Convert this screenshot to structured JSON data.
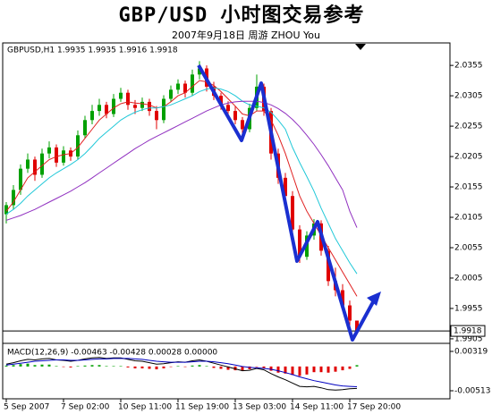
{
  "chart_data": {
    "type": "candlestick",
    "title": "GBP/USD 小时图交易参考",
    "subtitle": "2007年9月18日    周游 ZHOU You",
    "header": "GBPUSD,H1  1.9935 1.9935 1.9916 1.9918",
    "up_color": "#00a000",
    "down_color": "#e00000",
    "open": [
      2.011,
      2.0125,
      2.015,
      2.0185,
      2.02,
      2.0175,
      2.021,
      2.022,
      2.0195,
      2.0215,
      2.0205,
      2.024,
      2.0265,
      2.028,
      2.029,
      2.0275,
      2.03,
      2.031,
      2.029,
      2.0285,
      2.0295,
      2.028,
      2.0265,
      2.03,
      2.0315,
      2.0325,
      2.031,
      2.034,
      2.035,
      2.032,
      2.0305,
      2.029,
      2.028,
      2.0265,
      2.025,
      2.0285,
      2.032,
      2.028,
      2.021,
      2.017,
      2.014,
      2.0085,
      2.004,
      2.0075,
      2.0095,
      2.005,
      2.0,
      1.9985,
      1.996,
      1.9935
    ],
    "high": [
      2.013,
      2.0158,
      2.0192,
      2.021,
      2.0205,
      2.0218,
      2.023,
      2.0225,
      2.0222,
      2.022,
      2.0248,
      2.0272,
      2.029,
      2.03,
      2.0295,
      2.0308,
      2.0318,
      2.0315,
      2.0298,
      2.0302,
      2.03,
      2.0288,
      2.0306,
      2.0322,
      2.0332,
      2.033,
      2.0348,
      2.0362,
      2.0355,
      2.0328,
      2.031,
      2.0296,
      2.0288,
      2.027,
      2.0292,
      2.034,
      2.0325,
      2.0285,
      2.0218,
      2.0178,
      2.0148,
      2.0092,
      2.0082,
      2.0102,
      2.01,
      2.0058,
      2.0022,
      1.9995,
      1.9968,
      1.9935
    ],
    "low": [
      2.0095,
      2.0118,
      2.0142,
      2.0178,
      2.0165,
      2.017,
      2.0202,
      2.0188,
      2.019,
      2.0198,
      2.02,
      2.0235,
      2.0258,
      2.0272,
      2.0268,
      2.027,
      2.0295,
      2.0282,
      2.0275,
      2.028,
      2.0272,
      2.025,
      2.026,
      2.0295,
      2.0308,
      2.0302,
      2.0305,
      2.0332,
      2.0312,
      2.0298,
      2.0282,
      2.027,
      2.0258,
      2.024,
      2.0245,
      2.028,
      2.0272,
      2.02,
      2.016,
      2.013,
      2.0075,
      2.003,
      2.0035,
      2.0068,
      2.0042,
      1.9992,
      1.9975,
      1.9952,
      1.9925,
      1.9916
    ],
    "close": [
      2.0125,
      2.015,
      2.0185,
      2.02,
      2.0175,
      2.021,
      2.022,
      2.0195,
      2.0215,
      2.0205,
      2.024,
      2.0265,
      2.028,
      2.029,
      2.0275,
      2.03,
      2.031,
      2.029,
      2.0285,
      2.0295,
      2.028,
      2.0265,
      2.03,
      2.0315,
      2.0325,
      2.031,
      2.034,
      2.035,
      2.032,
      2.0305,
      2.029,
      2.028,
      2.0265,
      2.025,
      2.0285,
      2.032,
      2.028,
      2.021,
      2.017,
      2.014,
      2.0085,
      2.004,
      2.0075,
      2.0095,
      2.005,
      2.0,
      1.9985,
      1.996,
      1.9935,
      1.9918
    ],
    "ma_lines": [
      {
        "color": "#e02020",
        "values": [
          2.0115,
          2.013,
          2.015,
          2.017,
          2.018,
          2.019,
          2.02,
          2.0205,
          2.0208,
          2.021,
          2.022,
          2.0235,
          2.025,
          2.0265,
          2.0275,
          2.0285,
          2.0292,
          2.0295,
          2.0293,
          2.0292,
          2.029,
          2.0285,
          2.0287,
          2.0295,
          2.0305,
          2.031,
          2.032,
          2.033,
          2.0328,
          2.0322,
          2.0312,
          2.03,
          2.0288,
          2.0275,
          2.0272,
          2.028,
          2.028,
          2.0265,
          2.024,
          2.021,
          2.0175,
          2.014,
          2.0115,
          2.0095,
          2.0075,
          2.0055,
          2.0035,
          2.0015,
          1.9995,
          1.9975
        ]
      },
      {
        "color": "#20c8d8",
        "values": [
          2.011,
          2.0118,
          2.0128,
          2.014,
          2.015,
          2.016,
          2.017,
          2.0178,
          2.0185,
          2.0192,
          2.02,
          2.021,
          2.0222,
          2.0235,
          2.0245,
          2.0255,
          2.0265,
          2.0272,
          2.0278,
          2.0282,
          2.0285,
          2.0285,
          2.0287,
          2.029,
          2.0295,
          2.03,
          2.0305,
          2.0312,
          2.0316,
          2.0318,
          2.0316,
          2.0312,
          2.0305,
          2.0296,
          2.029,
          2.0288,
          2.0285,
          2.0278,
          2.0265,
          2.025,
          2.022,
          2.0195,
          2.0172,
          2.0148,
          2.012,
          2.0095,
          2.007,
          2.005,
          2.003,
          2.0012
        ]
      },
      {
        "color": "#9030c0",
        "values": [
          2.01,
          2.0104,
          2.0108,
          2.0113,
          2.0118,
          2.0124,
          2.013,
          2.0136,
          2.0142,
          2.0148,
          2.0155,
          2.0162,
          2.017,
          2.0178,
          2.0186,
          2.0194,
          2.0202,
          2.021,
          2.0218,
          2.0225,
          2.0232,
          2.0238,
          2.0244,
          2.025,
          2.0256,
          2.0262,
          2.0268,
          2.0274,
          2.028,
          2.0285,
          2.029,
          2.0293,
          2.0295,
          2.0296,
          2.0296,
          2.0296,
          2.0294,
          2.029,
          2.0284,
          2.0276,
          2.0266,
          2.0254,
          2.024,
          2.0225,
          2.0208,
          2.019,
          2.017,
          2.015,
          2.0115,
          2.0088
        ]
      }
    ],
    "xlim": [
      -0.5,
      62
    ],
    "xticks": [
      {
        "value": 0,
        "label": "5 Sep 2007"
      },
      {
        "value": 8,
        "label": "7 Sep 02:00"
      },
      {
        "value": 16,
        "label": "10 Sep 11:00"
      },
      {
        "value": 24,
        "label": "11 Sep 19:00"
      },
      {
        "value": 32,
        "label": "13 Sep 03:00"
      },
      {
        "value": 40,
        "label": "14 Sep 11:00"
      },
      {
        "value": 48,
        "label": "17 Sep 20:00"
      }
    ],
    "ylim": [
      1.9899,
      2.0392
    ],
    "yticks": [
      2.0355,
      2.0305,
      2.0255,
      2.0205,
      2.0155,
      2.0105,
      2.0055,
      2.0005,
      1.9955,
      1.9905
    ],
    "macd": {
      "label": "MACD(12,26,9) -0.00463 -0.00428 0.00028 0.00000",
      "macd_color": "#000000",
      "signal_color": "#0000c0",
      "pos_color": "#00a000",
      "neg_color": "#e00000",
      "macd": [
        0.0005,
        0.0008,
        0.0012,
        0.0015,
        0.0014,
        0.0016,
        0.0017,
        0.0014,
        0.0013,
        0.0011,
        0.0013,
        0.0016,
        0.0018,
        0.0019,
        0.0017,
        0.0018,
        0.0018,
        0.0015,
        0.0012,
        0.0011,
        0.0008,
        0.0005,
        0.0006,
        0.0008,
        0.001,
        0.0009,
        0.0012,
        0.0014,
        0.0011,
        0.0007,
        0.0003,
        -0.0001,
        -0.0005,
        -0.0009,
        -0.0008,
        -0.0004,
        -0.0007,
        -0.0015,
        -0.0022,
        -0.0028,
        -0.0035,
        -0.0042,
        -0.0043,
        -0.0042,
        -0.0045,
        -0.0049,
        -0.005,
        -0.0049,
        -0.0047,
        -0.00463
      ],
      "signal": [
        0.0003,
        0.0005,
        0.0007,
        0.0009,
        0.0011,
        0.0012,
        0.0013,
        0.0014,
        0.0014,
        0.0013,
        0.0013,
        0.0014,
        0.0015,
        0.0016,
        0.0016,
        0.0017,
        0.0017,
        0.0017,
        0.0016,
        0.0015,
        0.0013,
        0.0011,
        0.001,
        0.0009,
        0.0009,
        0.0009,
        0.001,
        0.0011,
        0.0011,
        0.001,
        0.0008,
        0.0006,
        0.0003,
        0.0,
        -0.0002,
        -0.0003,
        -0.0004,
        -0.0006,
        -0.0009,
        -0.0013,
        -0.0017,
        -0.0022,
        -0.0026,
        -0.003,
        -0.0033,
        -0.0036,
        -0.0039,
        -0.0041,
        -0.0042,
        -0.00428
      ],
      "histogram": [
        0.0002,
        0.0003,
        0.0005,
        0.0006,
        0.0003,
        0.0004,
        0.0004,
        0.0001,
        -0.0001,
        -0.0002,
        0.0001,
        0.0002,
        0.0003,
        0.0003,
        0.0001,
        0.0001,
        0.0001,
        -0.0002,
        -0.0004,
        -0.0004,
        -0.0005,
        -0.0006,
        -0.0004,
        -0.0001,
        0.0001,
        -0.0001,
        0.0002,
        0.0003,
        0.0001,
        -0.0003,
        -0.0005,
        -0.0007,
        -0.0008,
        -0.0009,
        -0.0006,
        -0.0001,
        -0.0003,
        -0.0009,
        -0.0013,
        -0.0015,
        -0.0018,
        -0.002,
        -0.0017,
        -0.0012,
        -0.0012,
        -0.0013,
        -0.0011,
        -0.0008,
        -0.0005,
        0.00028
      ],
      "ylim": [
        -0.00683,
        0.00451
      ],
      "yticks": [
        0.00319,
        -0.00513
      ]
    }
  }
}
